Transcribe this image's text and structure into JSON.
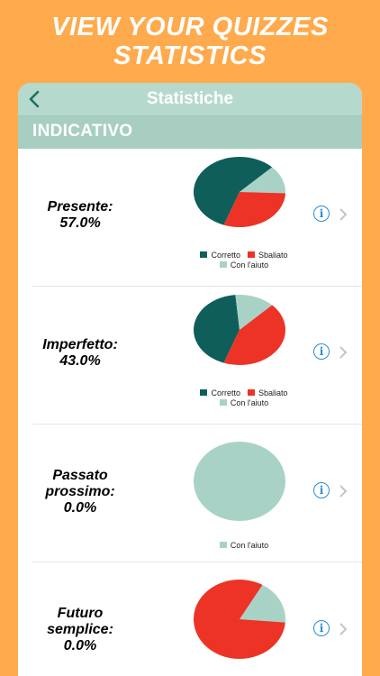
{
  "promo": {
    "line1": "VIEW YOUR QUIZZES",
    "line2": "STATISTICS"
  },
  "navbar": {
    "title": "Statistiche",
    "back_icon": "chevron-left-icon"
  },
  "section": {
    "title": "INDICATIVO"
  },
  "colors": {
    "correct": "#0F5E5A",
    "wrong": "#EC3325",
    "help": "#A9D2C7",
    "accent": "#2A8CD6",
    "background": "#FFAA4C"
  },
  "legend_labels": {
    "correct": "Corretto",
    "wrong": "Sbaliato",
    "help": "Con l'aiuto"
  },
  "rows": [
    {
      "name_line1": "Presente:",
      "name_line2": "",
      "percent": "57.0%",
      "pie": {
        "correct": 0.57,
        "wrong": 0.3,
        "help": 0.13
      }
    },
    {
      "name_line1": "Imperfetto:",
      "name_line2": "",
      "percent": "43.0%",
      "pie": {
        "correct": 0.43,
        "wrong": 0.43,
        "help": 0.14
      }
    },
    {
      "name_line1": "Passato",
      "name_line2": "prossimo:",
      "percent": "0.0%",
      "pie": {
        "correct": 0.0,
        "wrong": 0.0,
        "help": 1.0
      }
    },
    {
      "name_line1": "Futuro",
      "name_line2": "semplice:",
      "percent": "0.0%",
      "pie": {
        "correct": 0.0,
        "wrong": 0.82,
        "help": 0.18
      }
    }
  ]
}
